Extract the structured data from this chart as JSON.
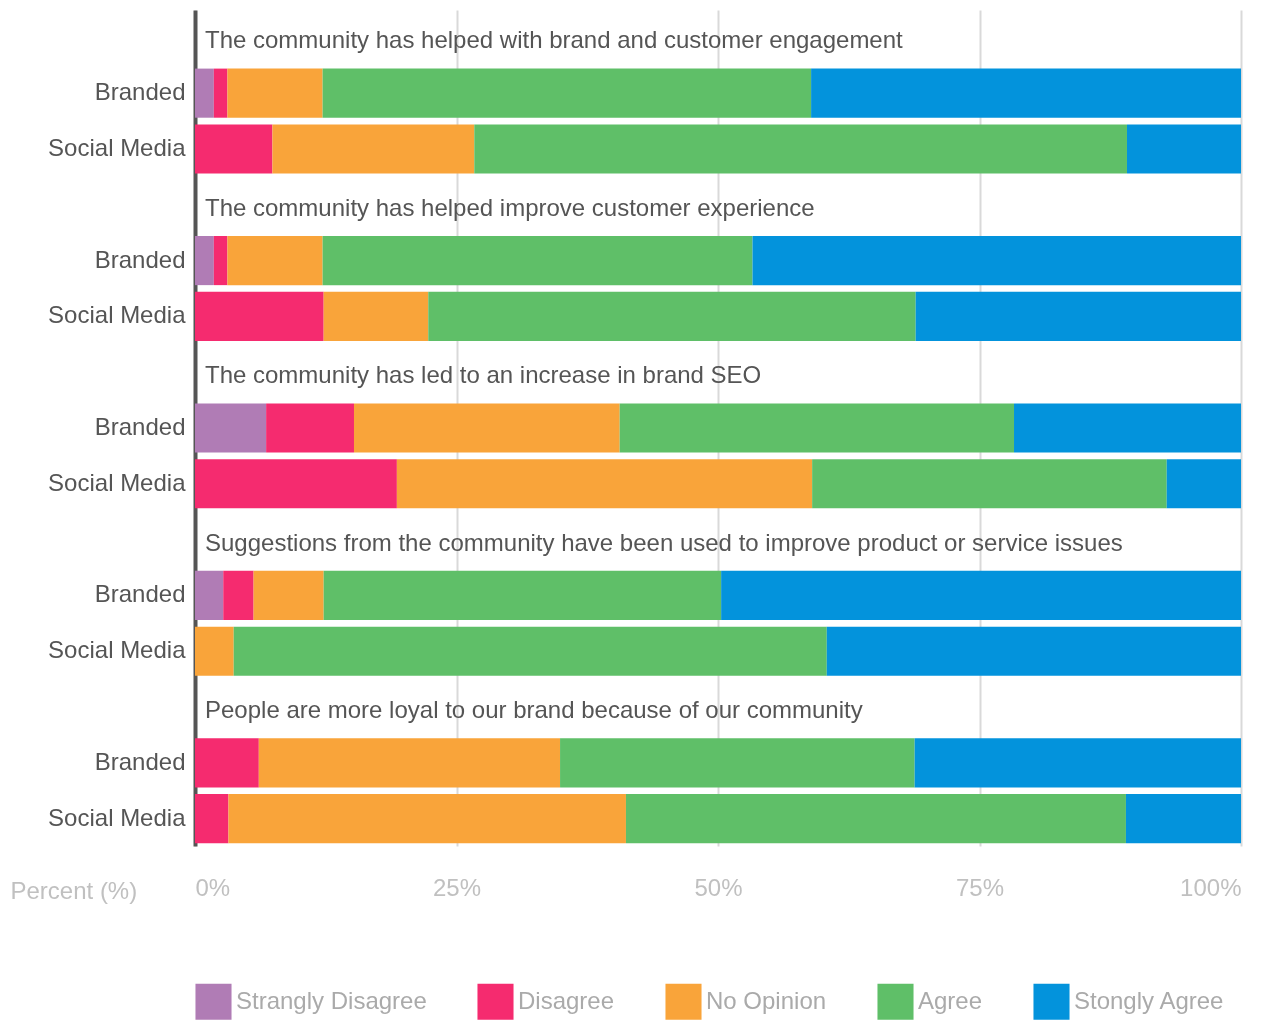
{
  "chart_data": {
    "type": "bar",
    "orientation": "horizontal",
    "stacked": true,
    "categories": [
      "Branded",
      "Social Media",
      "Branded",
      "Social Media",
      "Branded",
      "Social Media",
      "Branded",
      "Social Media",
      "Branded",
      "Social Media"
    ],
    "series": [
      {
        "name": "Strangly Disagree",
        "color": "#b07cb5",
        "values": [
          1.8,
          0,
          1.8,
          0,
          6.8,
          0,
          2.7,
          0,
          0,
          0
        ]
      },
      {
        "name": "Disagree",
        "color": "#f52b6f",
        "values": [
          1.3,
          7.4,
          1.3,
          12.3,
          8.4,
          19.3,
          2.9,
          0,
          6.1,
          3.2
        ]
      },
      {
        "name": "No Opinion",
        "color": "#f9a43a",
        "values": [
          9.1,
          19.3,
          9.1,
          10.0,
          25.4,
          39.7,
          6.7,
          3.7,
          28.8,
          38.0
        ]
      },
      {
        "name": "Agree",
        "color": "#5fbf68",
        "values": [
          46.7,
          62.4,
          41.1,
          46.6,
          37.7,
          33.9,
          38.0,
          56.7,
          33.9,
          47.8
        ]
      },
      {
        "name": "Stongly Agree",
        "color": "#0393dc",
        "values": [
          41.1,
          10.9,
          46.7,
          31.1,
          21.7,
          7.1,
          49.7,
          39.6,
          31.2,
          11.0
        ]
      }
    ],
    "annotations": [
      "The community has helped with brand and customer engagement",
      "The community has helped improve customer experience",
      "The community has led to an increase in brand SEO",
      "Suggestions from the community have been used to improve product or service issues",
      "People are more loyal to our brand because of our community"
    ],
    "xlabel": "Percent (%)",
    "xlim": [
      0,
      100
    ],
    "xticks": [
      {
        "value": 0,
        "label": "0%"
      },
      {
        "value": 25,
        "label": "25%"
      },
      {
        "value": 50,
        "label": "50%"
      },
      {
        "value": 75,
        "label": "75%"
      },
      {
        "value": 100,
        "label": "100%"
      }
    ],
    "grid": "x",
    "legend": "bottom"
  }
}
